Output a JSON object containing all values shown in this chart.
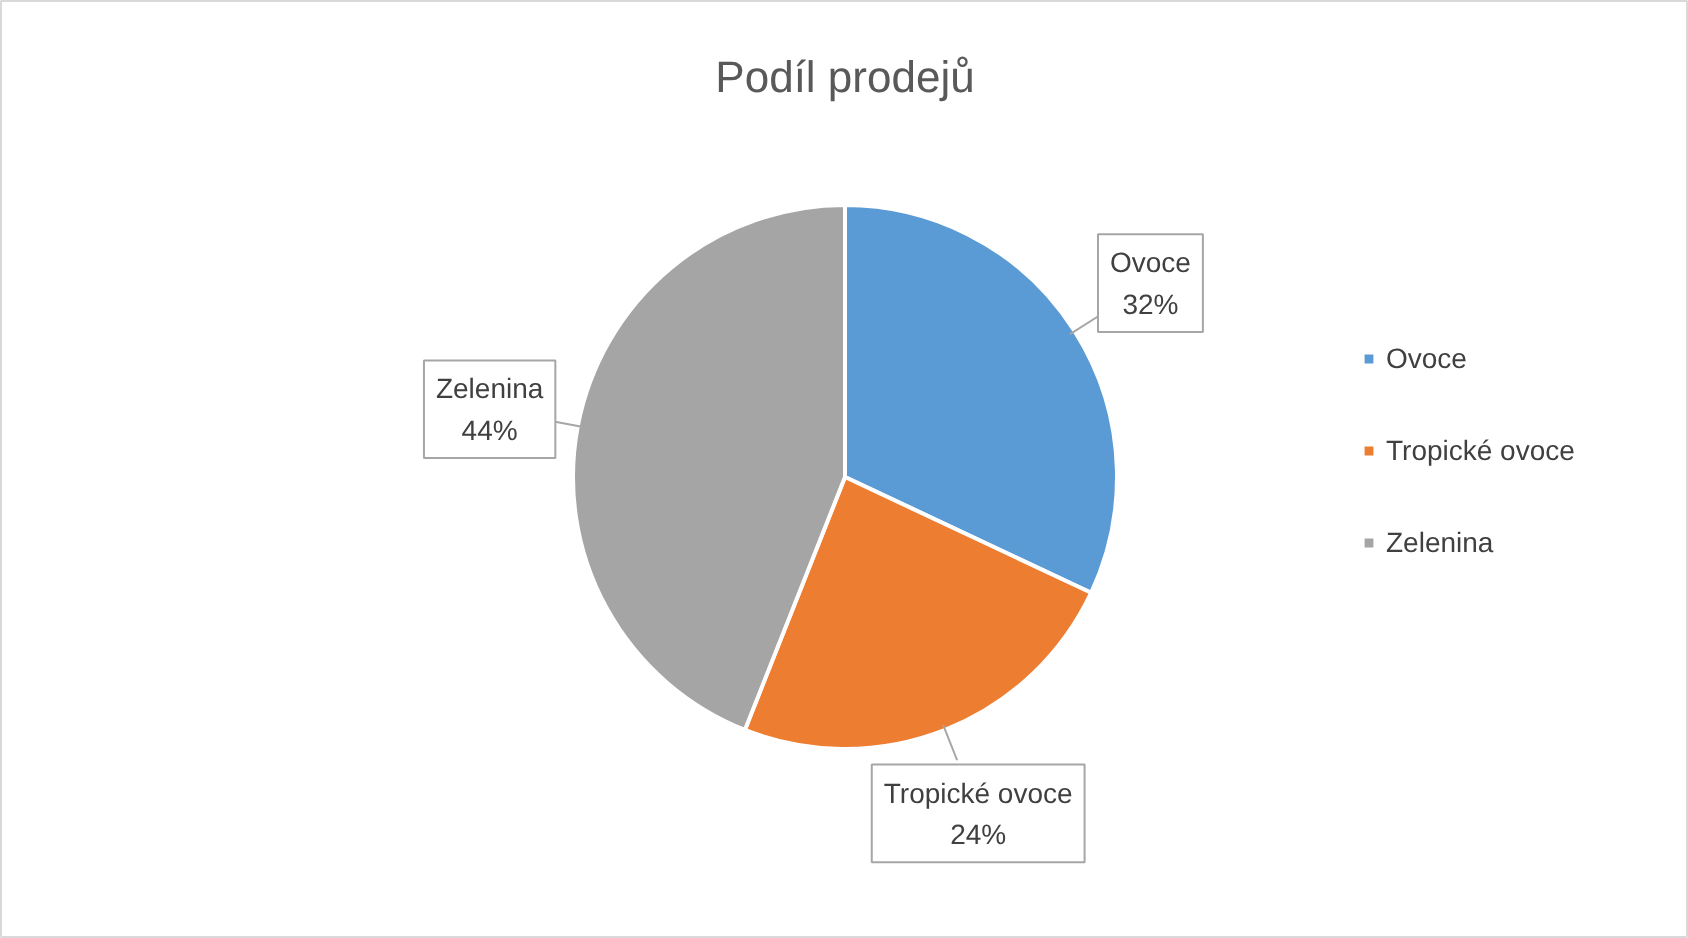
{
  "chart_data": {
    "type": "pie",
    "title": "Podíl prodejů",
    "categories": [
      "Ovoce",
      "Tropické ovoce",
      "Zelenina"
    ],
    "values": [
      32,
      24,
      44
    ],
    "colors": [
      "#5b9bd5",
      "#ed7d31",
      "#a5a5a5"
    ],
    "value_labels": [
      "32%",
      "24%",
      "44%"
    ],
    "legend": "right"
  }
}
